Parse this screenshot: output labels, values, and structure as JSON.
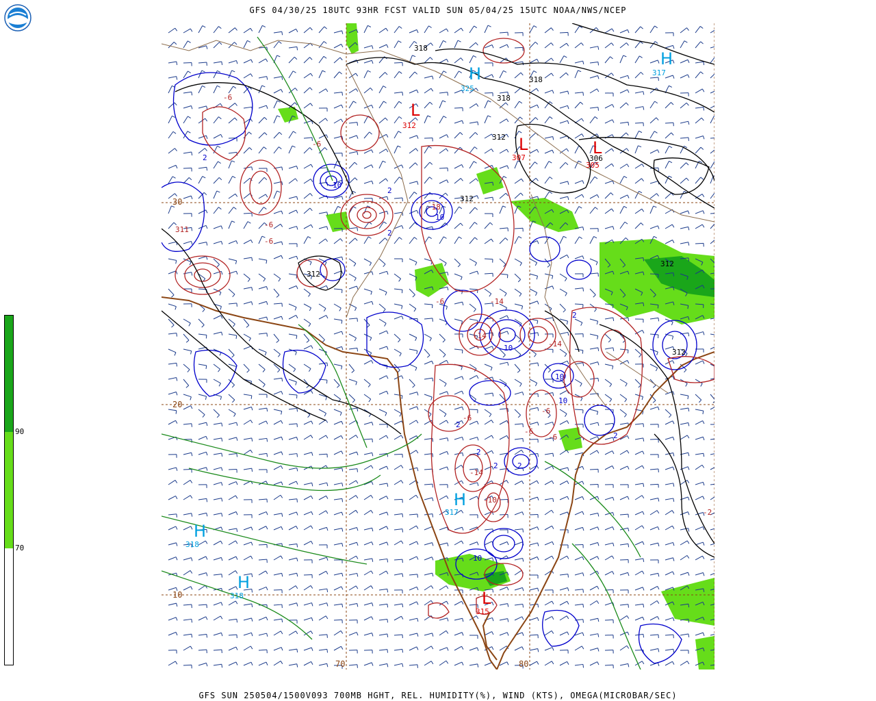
{
  "header": {
    "title": "GFS 04/30/25 18UTC 93HR FCST VALID SUN 05/04/25 15UTC NOAA/NWS/NCEP",
    "logo_text": "NOAA"
  },
  "footer": {
    "caption": "GFS SUN 250504/1500V093 700MB HGHT, REL. HUMIDITY(%), WIND (KTS), OMEGA(MICROBAR/SEC)"
  },
  "colorbar": {
    "labels": [
      "90",
      "70"
    ],
    "segments": [
      {
        "from": 90,
        "to": 100,
        "color": "#1aa61a"
      },
      {
        "from": 70,
        "to": 90,
        "color": "#66dd1a"
      },
      {
        "from": 0,
        "to": 70,
        "color": "#ffffff"
      }
    ]
  },
  "map": {
    "lat_labels": [
      "30",
      "20",
      "10"
    ],
    "lon_labels": [
      "70",
      "80"
    ],
    "highs": [
      {
        "label": "H",
        "value": "325"
      },
      {
        "label": "H",
        "value": "317"
      },
      {
        "label": "H",
        "value": "317"
      },
      {
        "label": "H",
        "value": "318"
      },
      {
        "label": "H",
        "value": "318"
      }
    ],
    "lows": [
      {
        "label": "L",
        "value": "312"
      },
      {
        "label": "L",
        "value": "307"
      },
      {
        "label": "L",
        "value": "305"
      },
      {
        "label": "L",
        "value": "315"
      }
    ],
    "height_labels": [
      "318",
      "318",
      "318",
      "312",
      "312",
      "312",
      "306",
      "312",
      "312"
    ],
    "omega_labels": [
      "-6",
      "-6",
      "-6",
      "2",
      "10",
      "-18",
      "10",
      "2",
      "-6",
      "2",
      "-6",
      "-14",
      "2",
      "10",
      "-14",
      "-14",
      "-6",
      "2",
      "10",
      "2",
      "-6",
      "-6",
      "2",
      "10",
      "-14",
      "2",
      "10",
      "-10",
      "-6",
      "2",
      "311",
      "-2"
    ],
    "colors": {
      "height": "#000000",
      "omega_up": "#0000cc",
      "omega_down": "#b22222",
      "humidity_light": "#66dd1a",
      "humidity_dark": "#1aa61a",
      "geography": "#8b4513",
      "wind": "#1a3a8a",
      "highs_lows": "#00a0e0",
      "lows": "#dd0000"
    }
  }
}
